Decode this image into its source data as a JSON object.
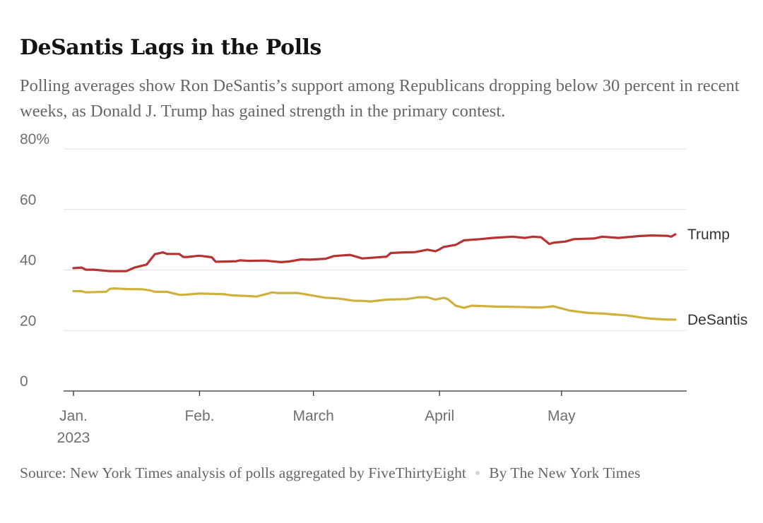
{
  "title": "DeSantis Lags in the Polls",
  "subtitle": "Polling averages show Ron DeSantis’s support among Republicans dropping below 30 percent in recent weeks, as Donald J. Trump has gained strength in the primary contest.",
  "source": "Source: New York Times analysis of polls aggregated by FiveThirtyEight",
  "byline": "By The New York Times",
  "colors": {
    "trump": "#b83232",
    "desantis": "#d1b13e",
    "grid": "#e2e2e2",
    "axis": "#333333",
    "tick_text": "#6f6f6f"
  },
  "chart_data": {
    "type": "line",
    "title": "DeSantis Lags in the Polls",
    "xlabel": "",
    "ylabel": "",
    "ylim": [
      0,
      80
    ],
    "yticks": [
      0,
      20,
      40,
      60,
      80
    ],
    "ytick_labels": [
      "0",
      "20",
      "40",
      "60",
      "80%"
    ],
    "xlim": [
      1,
      149
    ],
    "xticks": [
      {
        "day": 1,
        "label": "Jan.",
        "label2": "2023"
      },
      {
        "day": 32,
        "label": "Feb.",
        "label2": ""
      },
      {
        "day": 60,
        "label": "March",
        "label2": ""
      },
      {
        "day": 91,
        "label": "April",
        "label2": ""
      },
      {
        "day": 121,
        "label": "May",
        "label2": ""
      }
    ],
    "x_unit": "day of 2023",
    "series": [
      {
        "name": "Trump",
        "x": [
          1,
          3,
          4,
          6,
          10,
          11,
          14,
          16,
          19,
          21,
          23,
          24,
          27,
          28,
          29,
          31,
          32,
          35,
          36,
          41,
          42,
          44,
          48,
          52,
          54,
          57,
          59,
          63,
          65,
          69,
          72,
          78,
          79,
          82,
          85,
          88,
          90,
          91,
          92,
          95,
          97,
          101,
          104,
          109,
          112,
          114,
          116,
          118,
          119,
          122,
          124,
          129,
          131,
          135,
          140,
          143,
          147,
          148,
          149
        ],
        "values": [
          40.6,
          40.8,
          40.1,
          40.1,
          39.6,
          39.6,
          39.6,
          40.8,
          41.8,
          45.2,
          45.8,
          45.3,
          45.3,
          44.3,
          44.3,
          44.6,
          44.7,
          44.2,
          42.7,
          42.9,
          43.2,
          43.0,
          43.1,
          42.6,
          42.8,
          43.5,
          43.4,
          43.7,
          44.6,
          45.0,
          43.8,
          44.4,
          45.6,
          45.8,
          45.9,
          46.7,
          46.2,
          46.8,
          47.6,
          48.3,
          49.8,
          50.2,
          50.6,
          51.0,
          50.6,
          51.0,
          50.8,
          48.6,
          49.0,
          49.4,
          50.2,
          50.4,
          51.0,
          50.6,
          51.2,
          51.4,
          51.3,
          51.0,
          51.8
        ]
      },
      {
        "name": "DeSantis",
        "x": [
          1,
          3,
          4,
          9,
          10,
          11,
          14,
          18,
          20,
          21,
          24,
          27,
          28,
          32,
          38,
          40,
          44,
          46,
          50,
          51,
          56,
          57,
          63,
          66,
          70,
          72,
          74,
          78,
          83,
          86,
          88,
          90,
          92,
          93,
          95,
          97,
          99,
          105,
          110,
          116,
          119,
          123,
          127,
          128,
          129,
          131,
          133,
          135,
          137,
          141,
          143,
          147,
          149
        ],
        "values": [
          33.0,
          33.0,
          32.6,
          32.8,
          33.8,
          33.9,
          33.7,
          33.6,
          33.2,
          32.8,
          32.8,
          31.8,
          31.8,
          32.2,
          32.0,
          31.6,
          31.4,
          31.2,
          32.6,
          32.4,
          32.4,
          32.2,
          30.8,
          30.6,
          29.8,
          29.8,
          29.6,
          30.2,
          30.4,
          31.0,
          31.0,
          30.2,
          30.8,
          30.4,
          28.2,
          27.5,
          28.2,
          27.9,
          27.8,
          27.6,
          28.0,
          26.6,
          25.9,
          25.8,
          25.7,
          25.6,
          25.4,
          25.2,
          25.0,
          24.2,
          23.9,
          23.6,
          23.6
        ]
      }
    ]
  }
}
